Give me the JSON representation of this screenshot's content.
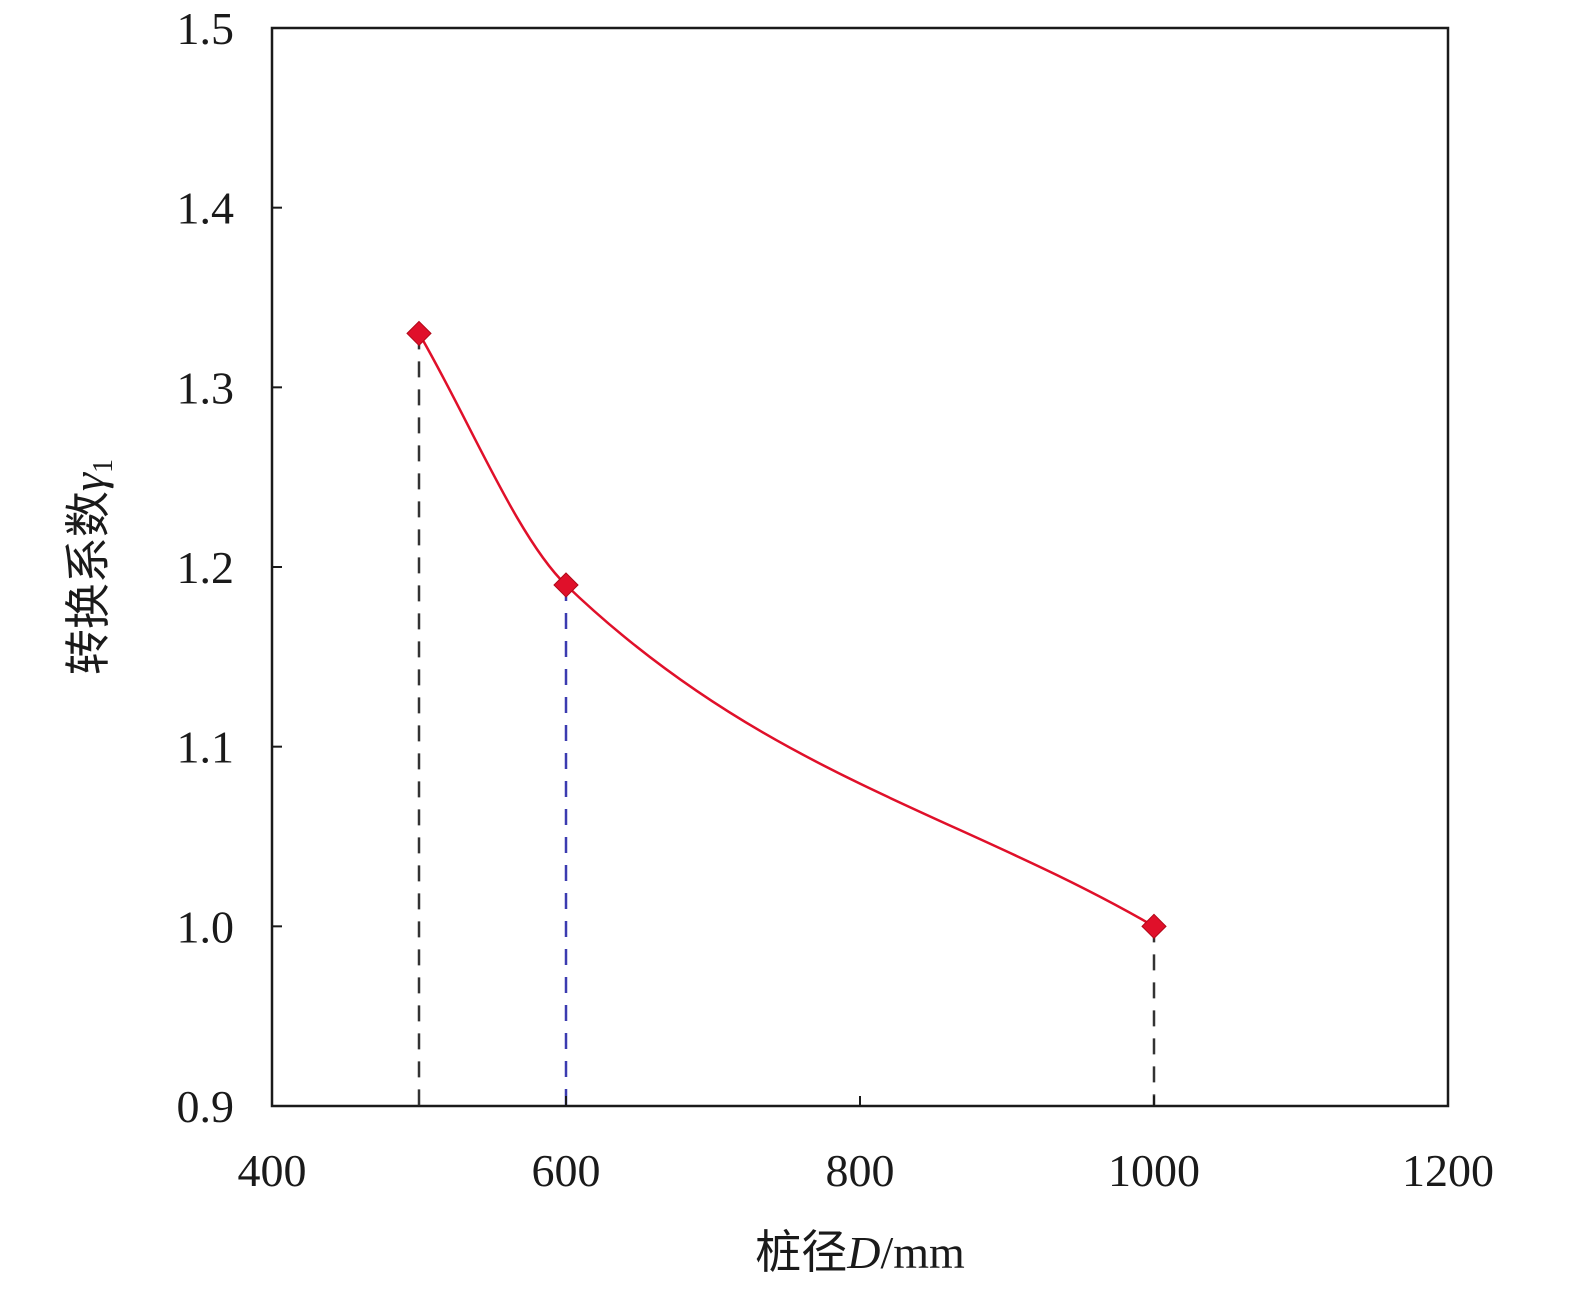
{
  "chart_data": {
    "type": "line",
    "xlabel": {
      "prefix": "桩径",
      "var": "D",
      "suffix": "/mm"
    },
    "ylabel": {
      "prefix": "转换系数",
      "var": "γ",
      "sub": "1"
    },
    "xlim": [
      400,
      1200
    ],
    "ylim": [
      0.9,
      1.5
    ],
    "xticks": [
      400,
      600,
      800,
      1000,
      1200
    ],
    "yticks": [
      0.9,
      1.0,
      1.1,
      1.2,
      1.3,
      1.4,
      1.5
    ],
    "ytick_labels": [
      "0.9",
      "1.0",
      "1.1",
      "1.2",
      "1.3",
      "1.4",
      "1.5"
    ],
    "xtick_labels": [
      "400",
      "600",
      "800",
      "1000",
      "1200"
    ],
    "series": [
      {
        "x": [
          500,
          600,
          1000
        ],
        "y": [
          1.33,
          1.19,
          1.0
        ],
        "marker": "diamond",
        "color": "#e0102a"
      }
    ],
    "drop_lines": [
      {
        "x": 500,
        "y": 1.33,
        "color": "#333333"
      },
      {
        "x": 600,
        "y": 1.19,
        "color": "#3b3bb0"
      },
      {
        "x": 1000,
        "y": 1.0,
        "color": "#333333"
      }
    ],
    "grid": false,
    "legend": "none"
  }
}
